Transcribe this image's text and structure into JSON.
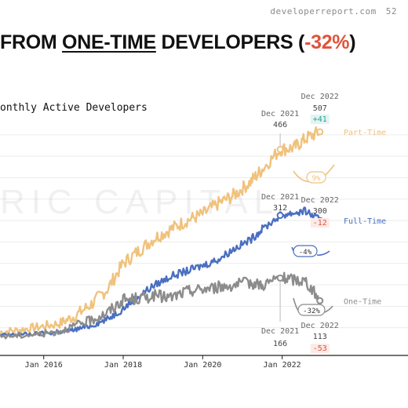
{
  "header": {
    "site": "developerreport.com",
    "page": "52"
  },
  "headline": {
    "part1": "FROM ",
    "underlined": "ONE-TIME",
    "part2": " DEVELOPERS (",
    "negative": "-32%",
    "part3": ")"
  },
  "watermark": "RIC CAPITAL",
  "colors": {
    "part_time": "#f0c27d",
    "full_time": "#4a6fc1",
    "one_time": "#8c8c8c",
    "positive": "#2aa198",
    "negative": "#e0533b",
    "grid": "#ececec"
  },
  "chart_data": {
    "type": "line",
    "title": "onthly Active Developers",
    "x_tick_labels": [
      "Jan 2016",
      "Jan 2018",
      "Jan 2020",
      "Jan 2022"
    ],
    "x_tick_values": [
      2016.0,
      2018.0,
      2020.0,
      2022.0
    ],
    "xlim": [
      2014.9,
      2023.35
    ],
    "ylim": [
      0,
      540
    ],
    "grid": true,
    "series": [
      {
        "key": "part_time",
        "name": "Part-Time",
        "x": [
          2014.9,
          2015.4,
          2015.9,
          2016.4,
          2016.8,
          2017.2,
          2017.6,
          2018.0,
          2018.4,
          2018.8,
          2019.2,
          2019.6,
          2020.0,
          2020.4,
          2020.8,
          2021.2,
          2021.5,
          2021.95,
          2022.3,
          2022.6,
          2022.95
        ],
        "values": [
          40,
          45,
          52,
          60,
          78,
          105,
          140,
          200,
          230,
          260,
          280,
          300,
          315,
          340,
          360,
          390,
          420,
          466,
          470,
          492,
          507
        ]
      },
      {
        "key": "full_time",
        "name": "Full-Time",
        "x": [
          2014.9,
          2015.4,
          2015.9,
          2016.4,
          2016.8,
          2017.2,
          2017.6,
          2018.0,
          2018.4,
          2018.8,
          2019.2,
          2019.6,
          2020.0,
          2020.4,
          2020.8,
          2021.2,
          2021.5,
          2021.95,
          2022.3,
          2022.6,
          2022.95
        ],
        "values": [
          32,
          34,
          36,
          40,
          46,
          55,
          70,
          95,
          125,
          150,
          170,
          182,
          195,
          210,
          235,
          255,
          280,
          312,
          318,
          322,
          300
        ]
      },
      {
        "key": "one_time",
        "name": "One-Time",
        "x": [
          2014.9,
          2015.4,
          2015.9,
          2016.4,
          2016.8,
          2017.2,
          2017.6,
          2018.0,
          2018.4,
          2018.8,
          2019.2,
          2019.6,
          2020.0,
          2020.4,
          2020.8,
          2021.2,
          2021.5,
          2021.95,
          2022.3,
          2022.6,
          2022.95
        ],
        "values": [
          30,
          32,
          35,
          42,
          55,
          68,
          85,
          115,
          118,
          125,
          120,
          135,
          140,
          145,
          150,
          155,
          150,
          166,
          162,
          158,
          113
        ]
      }
    ],
    "annotations": {
      "part_time": {
        "dec_2021_label": "Dec 2021",
        "dec_2021_value": "466",
        "dec_2022_label": "Dec 2022",
        "dec_2022_value": "507",
        "delta": "+41",
        "pct": "9%"
      },
      "full_time": {
        "dec_2021_label": "Dec 2021",
        "dec_2021_value": "312",
        "dec_2022_label": "Dec 2022",
        "dec_2022_value": "300",
        "delta": "-12",
        "pct": "-4%"
      },
      "one_time": {
        "dec_2021_label": "Dec 2021",
        "dec_2021_value": "166",
        "dec_2022_label": "Dec 2022",
        "dec_2022_value": "113",
        "delta": "-53",
        "pct": "-32%"
      }
    }
  }
}
